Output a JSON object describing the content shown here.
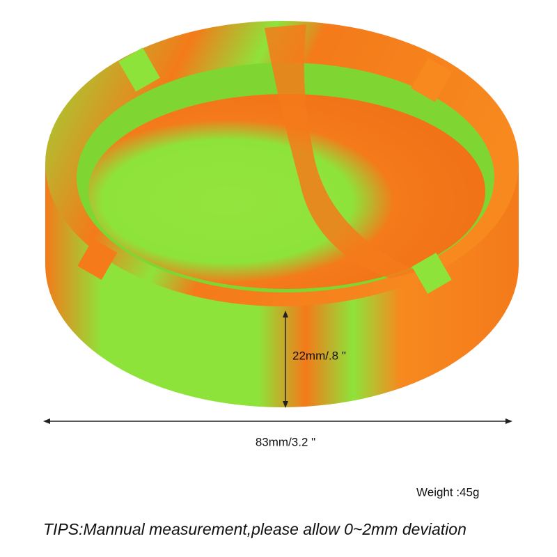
{
  "dimensions": {
    "height": "22mm/.8 \"",
    "width": "83mm/3.2 \""
  },
  "weight": "Weight :45g",
  "tips": "TIPS:Mannual measurement,please allow 0~2mm deviation"
}
